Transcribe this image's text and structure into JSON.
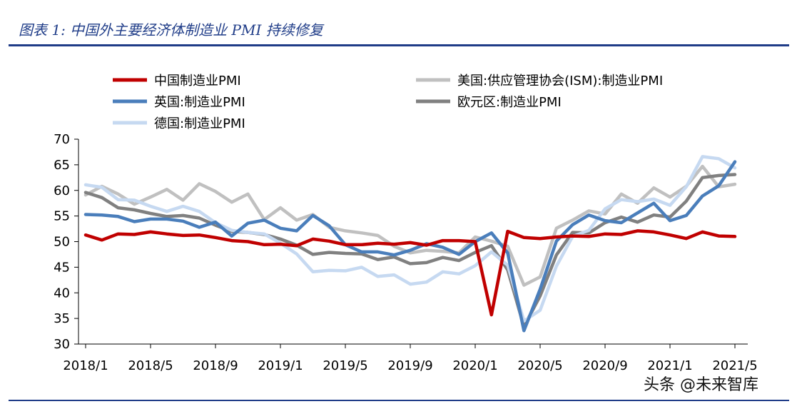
{
  "figure": {
    "title": "图表 1:  中国外主要经济体制造业 PMI 持续修复",
    "watermark": "头条 @未来智库"
  },
  "chart_data": {
    "type": "line",
    "ylim": [
      30,
      70
    ],
    "yticks": [
      30,
      35,
      40,
      45,
      50,
      55,
      60,
      65,
      70
    ],
    "x": [
      "2018/1",
      "2018/2",
      "2018/3",
      "2018/4",
      "2018/5",
      "2018/6",
      "2018/7",
      "2018/8",
      "2018/9",
      "2018/10",
      "2018/11",
      "2018/12",
      "2019/1",
      "2019/2",
      "2019/3",
      "2019/4",
      "2019/5",
      "2019/6",
      "2019/7",
      "2019/8",
      "2019/9",
      "2019/10",
      "2019/11",
      "2019/12",
      "2020/1",
      "2020/2",
      "2020/3",
      "2020/4",
      "2020/5",
      "2020/6",
      "2020/7",
      "2020/8",
      "2020/9",
      "2020/10",
      "2020/11",
      "2020/12",
      "2021/1",
      "2021/2",
      "2021/3",
      "2021/4",
      "2021/5"
    ],
    "xtick_labels": [
      "2018/1",
      "2018/5",
      "2018/9",
      "2019/1",
      "2019/5",
      "2019/9",
      "2020/1",
      "2020/5",
      "2020/9",
      "2021/1",
      "2021/5"
    ],
    "legend": "top",
    "grid": false,
    "series": [
      {
        "name": "中国制造业PMI",
        "color": "#c00000",
        "values": [
          51.3,
          50.3,
          51.5,
          51.4,
          51.9,
          51.5,
          51.2,
          51.3,
          50.8,
          50.2,
          50.0,
          49.4,
          49.5,
          49.2,
          50.5,
          50.1,
          49.4,
          49.4,
          49.7,
          49.5,
          49.8,
          49.3,
          50.2,
          50.2,
          50.0,
          35.7,
          52.0,
          50.8,
          50.6,
          50.9,
          51.1,
          51.0,
          51.5,
          51.4,
          52.1,
          51.9,
          51.3,
          50.6,
          51.9,
          51.1,
          51.0
        ]
      },
      {
        "name": "美国:供应管理协会(ISM):制造业PMI",
        "color": "#c0c0c0",
        "values": [
          59.1,
          60.8,
          59.3,
          57.3,
          58.7,
          60.2,
          58.1,
          61.3,
          59.8,
          57.7,
          59.3,
          54.3,
          56.6,
          54.2,
          55.3,
          52.8,
          52.1,
          51.7,
          51.2,
          49.1,
          47.8,
          48.3,
          48.1,
          47.8,
          50.9,
          50.1,
          49.1,
          41.5,
          43.1,
          52.6,
          54.2,
          56.0,
          55.4,
          59.3,
          57.5,
          60.5,
          58.7,
          60.8,
          64.7,
          60.7,
          61.2
        ]
      },
      {
        "name": "英国:制造业PMI",
        "color": "#4a7ebb",
        "values": [
          55.3,
          55.2,
          54.9,
          53.9,
          54.4,
          54.4,
          54.0,
          52.8,
          53.8,
          51.1,
          53.6,
          54.2,
          52.6,
          52.1,
          55.1,
          53.1,
          49.4,
          48.0,
          48.0,
          47.4,
          48.3,
          49.6,
          48.9,
          47.5,
          50.0,
          51.7,
          47.8,
          32.6,
          40.7,
          50.1,
          53.3,
          55.2,
          54.1,
          53.7,
          55.6,
          57.5,
          54.1,
          55.1,
          58.9,
          60.9,
          65.6
        ]
      },
      {
        "name": "欧元区:制造业PMI",
        "color": "#808080",
        "values": [
          59.6,
          58.6,
          56.6,
          56.2,
          55.5,
          54.9,
          55.1,
          54.6,
          53.2,
          52.0,
          51.8,
          51.4,
          50.5,
          49.3,
          47.5,
          47.9,
          47.7,
          47.6,
          46.5,
          47.0,
          45.7,
          45.9,
          46.9,
          46.3,
          47.9,
          49.2,
          44.5,
          33.4,
          39.4,
          47.4,
          51.8,
          51.7,
          53.7,
          54.8,
          53.8,
          55.2,
          54.8,
          57.9,
          62.5,
          62.9,
          63.1
        ]
      },
      {
        "name": "德国:制造业PMI",
        "color": "#c6d9f1",
        "values": [
          61.1,
          60.6,
          58.2,
          58.1,
          56.9,
          55.9,
          56.9,
          55.9,
          53.7,
          52.2,
          51.8,
          51.5,
          49.7,
          47.6,
          44.1,
          44.4,
          44.3,
          45.0,
          43.2,
          43.5,
          41.7,
          42.1,
          44.1,
          43.7,
          45.3,
          48.0,
          45.4,
          34.5,
          36.6,
          45.2,
          51.0,
          52.2,
          56.4,
          58.2,
          57.8,
          58.3,
          57.1,
          60.7,
          66.6,
          66.2,
          64.4
        ]
      }
    ]
  }
}
